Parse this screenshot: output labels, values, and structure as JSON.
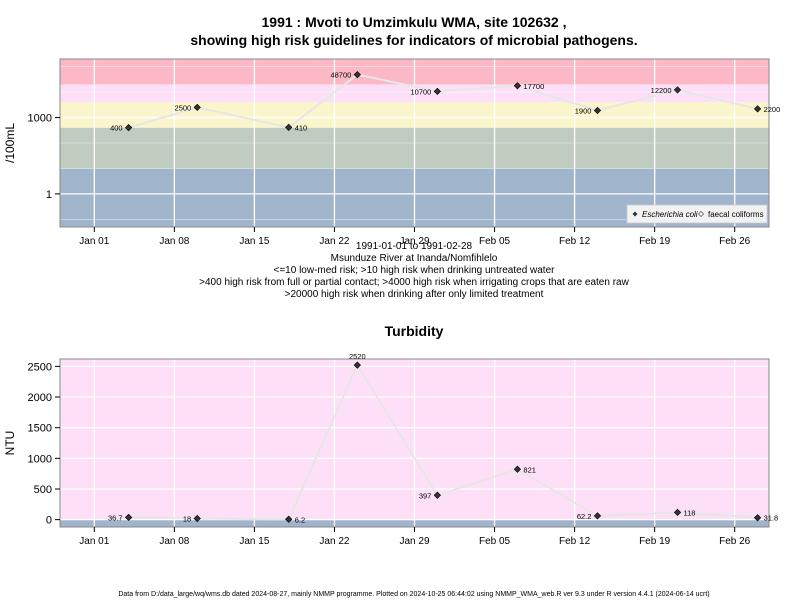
{
  "chart_data": [
    {
      "type": "line",
      "title_line1": "1991 : Mvoti to Umzimkulu WMA, site 102632 ,",
      "title_line2": "showing high risk guidelines for indicators of microbial pathogens.",
      "ylabel": "/100mL",
      "yscale": "log",
      "ylim": [
        0.05,
        200000
      ],
      "yticks": [
        1,
        1000
      ],
      "ytick_labels": [
        "1",
        "1000"
      ],
      "xlim": [
        "1990-12-29",
        "1991-03-01"
      ],
      "xticks": [
        "1991-01-01",
        "1991-01-08",
        "1991-01-15",
        "1991-01-22",
        "1991-01-29",
        "1991-02-05",
        "1991-02-12",
        "1991-02-19",
        "1991-02-26"
      ],
      "xtick_labels": [
        "Jan 01",
        "Jan 08",
        "Jan 15",
        "Jan 22",
        "Jan 29",
        "Feb 05",
        "Feb 12",
        "Feb 19",
        "Feb 26"
      ],
      "grid": true,
      "bands": [
        {
          "from": 0.05,
          "to": 10,
          "color": "#a0b4cc"
        },
        {
          "from": 10,
          "to": 400,
          "color": "#c0ccc0"
        },
        {
          "from": 400,
          "to": 4000,
          "color": "#fbf5cc"
        },
        {
          "from": 4000,
          "to": 20000,
          "color": "#fde0f8"
        },
        {
          "from": 20000,
          "to": 200000,
          "color": "#fcb8c4"
        }
      ],
      "series": [
        {
          "name": "Escherichia coli",
          "x": [
            "1991-01-04",
            "1991-01-10",
            "1991-01-18",
            "1991-01-24",
            "1991-01-31",
            "1991-02-07",
            "1991-02-14",
            "1991-02-21",
            "1991-02-28"
          ],
          "values": [
            400,
            2500,
            410,
            48700,
            10700,
            17700,
            1900,
            12200,
            2200
          ],
          "labels": [
            "400",
            "2500",
            "410",
            "48700",
            "10700",
            "17700",
            "1900",
            "12200",
            "2200"
          ]
        }
      ],
      "legend": {
        "position": "bottom-right",
        "entries": [
          "Escherichia coli",
          "faecal coliforms"
        ]
      },
      "caption": [
        "1991-01-01 to 1991-02-28",
        "Msunduze River at Inanda/Nomfihlelo",
        "<=10 low-med risk; >10 high risk when drinking untreated water",
        ">400 high risk from full or partial contact; >4000 high risk when irrigating crops that are eaten raw",
        ">20000 high risk when drinking after only limited treatment"
      ]
    },
    {
      "type": "line",
      "title": "Turbidity",
      "ylabel": "NTU",
      "ylim": [
        -120,
        2620
      ],
      "yticks": [
        0,
        500,
        1000,
        1500,
        2000,
        2500
      ],
      "ytick_labels": [
        "0",
        "500",
        "1000",
        "1500",
        "2000",
        "2500"
      ],
      "xlim": [
        "1990-12-29",
        "1991-03-01"
      ],
      "xticks": [
        "1991-01-01",
        "1991-01-08",
        "1991-01-15",
        "1991-01-22",
        "1991-01-29",
        "1991-02-05",
        "1991-02-12",
        "1991-02-19",
        "1991-02-26"
      ],
      "xtick_labels": [
        "Jan 01",
        "Jan 08",
        "Jan 15",
        "Jan 22",
        "Jan 29",
        "Feb 05",
        "Feb 12",
        "Feb 19",
        "Feb 26"
      ],
      "grid": true,
      "bands": [
        {
          "from": -120,
          "to": 0,
          "color": "#a0b4cc"
        },
        {
          "from": 0,
          "to": 2620,
          "color": "#fde0f8"
        }
      ],
      "series": [
        {
          "x": [
            "1991-01-04",
            "1991-01-10",
            "1991-01-18",
            "1991-01-24",
            "1991-01-31",
            "1991-02-07",
            "1991-02-14",
            "1991-02-21",
            "1991-02-28"
          ],
          "values": [
            36.7,
            18,
            6.2,
            2520,
            397,
            821,
            62.2,
            118,
            31.8
          ],
          "labels": [
            "36.7",
            "18",
            "6.2",
            "2520",
            "397",
            "821",
            "62.2",
            "118",
            "31.8"
          ]
        }
      ]
    }
  ],
  "footer": "Data from D:/data_large/wq/wms.db dated 2024-08-27, mainly NMMP programme. Plotted on 2024-10-25 06:44:02 using NMMP_WMA_web.R ver 9.3 under R version 4.4.1 (2024-06-14 ucrt)"
}
